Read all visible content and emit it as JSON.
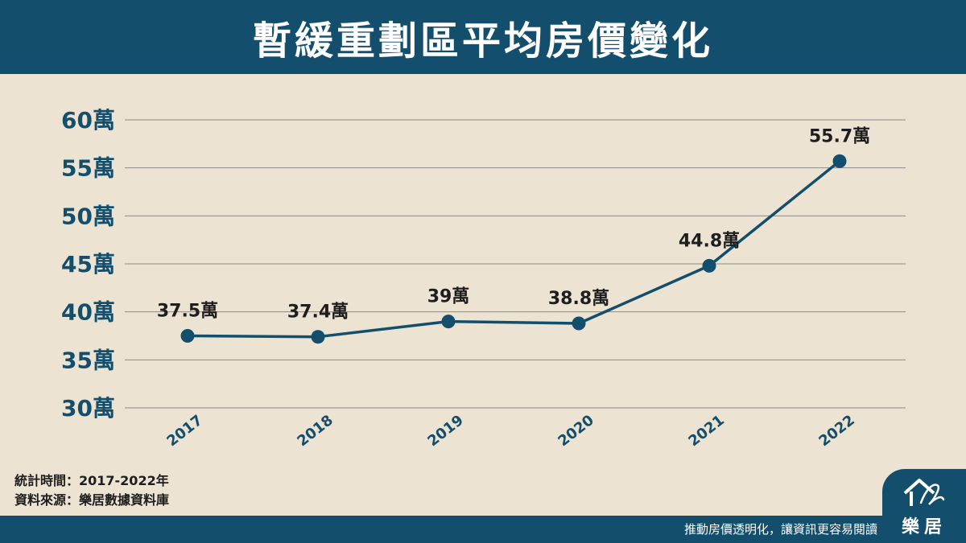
{
  "header": {
    "title": "暫緩重劃區平均房價變化"
  },
  "chart_data": {
    "type": "line",
    "title": "暫緩重劃區平均房價變化",
    "categories": [
      "2017",
      "2018",
      "2019",
      "2020",
      "2021",
      "2022"
    ],
    "values": [
      37.5,
      37.4,
      39,
      38.8,
      44.8,
      55.7
    ],
    "data_labels": [
      "37.5萬",
      "37.4萬",
      "39萬",
      "38.8萬",
      "44.8萬",
      "55.7萬"
    ],
    "yticks": [
      "30萬",
      "35萬",
      "40萬",
      "45萬",
      "50萬",
      "55萬",
      "60萬"
    ],
    "ylim": [
      30,
      60
    ],
    "grid": true,
    "colors": {
      "line": "#134f6c",
      "point": "#134f6c",
      "axis_text": "#134f6c",
      "label_text": "#1e1e1e"
    }
  },
  "footnotes": {
    "period": "統計時間：2017-2022年",
    "source": "資料來源：樂居數據資料庫"
  },
  "footer": {
    "slogan": "推動房價透明化，讓資訊更容易閱讀",
    "logo_text": "樂居",
    "logo_icon": "house-signature-icon"
  }
}
